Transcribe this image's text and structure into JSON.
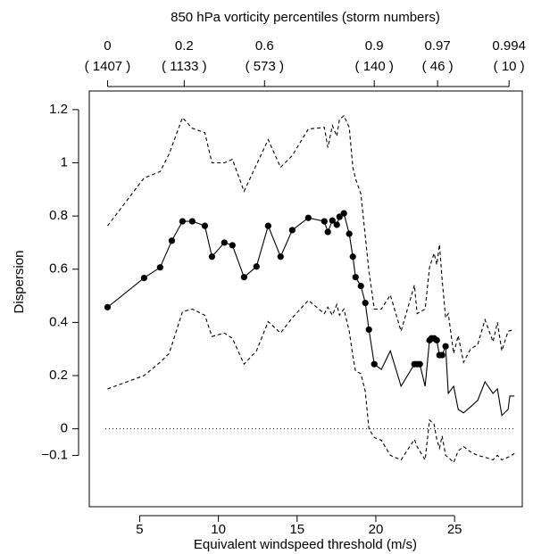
{
  "chart_data": {
    "type": "line",
    "title": "850 hPa vorticity percentiles (storm numbers)",
    "x_label": "Equivalent windspeed threshold (m/s)",
    "y_label": "Dispersion",
    "xlim": [
      1.8,
      29.3
    ],
    "ylim": [
      -0.293,
      1.27
    ],
    "xticks": [
      5,
      10,
      15,
      20,
      25
    ],
    "yticks": [
      {
        "value": -0.1,
        "label": "−0.1"
      },
      0,
      0.2,
      0.4,
      0.6,
      0.8,
      1,
      1.2
    ],
    "x2ticks": [
      {
        "value": 2.96,
        "label": "0",
        "sublabel": "( 1407 )"
      },
      {
        "value": 7.83,
        "label": "0.2",
        "sublabel": "( 1133 )"
      },
      {
        "value": 12.93,
        "label": "0.6",
        "sublabel": "( 573 )"
      },
      {
        "value": 19.9,
        "label": "0.9",
        "sublabel": "( 140 )"
      },
      {
        "value": 23.92,
        "label": "0.97",
        "sublabel": "( 46 )"
      },
      {
        "value": 28.46,
        "label": "0.994",
        "sublabel": "( 10 )"
      }
    ],
    "hline": 0,
    "series": [
      {
        "style": "solid",
        "color": "#000000",
        "x": [
          2.96,
          5.28,
          6.3,
          7.04,
          7.72,
          8.34,
          9.14,
          9.59,
          10.38,
          10.89,
          11.63,
          12.42,
          13.16,
          13.95,
          14.69,
          15.71,
          16.73,
          16.95,
          17.24,
          17.52,
          17.69,
          17.97,
          18.31,
          18.54,
          18.71,
          19.05,
          19.33,
          19.56,
          19.9,
          20.35,
          20.92,
          21.6,
          22.45,
          22.62,
          22.79,
          23.13,
          23.41,
          23.53,
          23.7,
          23.87,
          24.04,
          24.21,
          24.43,
          24.6,
          24.94,
          25.23,
          25.57,
          26.02,
          26.47,
          26.93,
          27.44,
          27.72,
          28.0,
          28.4,
          28.51,
          28.8
        ],
        "values": [
          0.457,
          0.567,
          0.607,
          0.707,
          0.78,
          0.78,
          0.763,
          0.647,
          0.7,
          0.69,
          0.57,
          0.61,
          0.763,
          0.647,
          0.747,
          0.793,
          0.78,
          0.74,
          0.783,
          0.767,
          0.797,
          0.81,
          0.733,
          0.647,
          0.57,
          0.537,
          0.473,
          0.373,
          0.243,
          0.223,
          0.293,
          0.16,
          0.243,
          0.243,
          0.243,
          0.16,
          0.333,
          0.34,
          0.34,
          0.333,
          0.277,
          0.277,
          0.31,
          0.133,
          0.16,
          0.073,
          0.06,
          0.083,
          0.107,
          0.177,
          0.133,
          0.15,
          0.05,
          0.073,
          0.123,
          0.123
        ]
      },
      {
        "style": "points",
        "color": "#000000",
        "x": [
          2.96,
          5.28,
          6.3,
          7.04,
          7.72,
          8.34,
          9.14,
          9.59,
          10.38,
          10.89,
          11.63,
          12.42,
          13.16,
          13.95,
          14.69,
          15.71,
          16.73,
          16.95,
          17.24,
          17.52,
          17.69,
          17.97,
          18.31,
          18.54,
          18.71,
          19.05,
          19.33,
          19.56,
          19.9,
          22.45,
          22.62,
          22.79,
          23.41,
          23.53,
          23.7,
          23.87,
          24.04,
          24.21,
          24.43
        ],
        "values": [
          0.457,
          0.567,
          0.607,
          0.707,
          0.78,
          0.78,
          0.763,
          0.647,
          0.7,
          0.69,
          0.57,
          0.61,
          0.763,
          0.647,
          0.747,
          0.793,
          0.78,
          0.74,
          0.783,
          0.767,
          0.797,
          0.81,
          0.733,
          0.647,
          0.57,
          0.537,
          0.473,
          0.373,
          0.243,
          0.243,
          0.243,
          0.243,
          0.333,
          0.34,
          0.34,
          0.333,
          0.277,
          0.277,
          0.31
        ]
      },
      {
        "style": "dashed",
        "color": "#000000",
        "x": [
          2.96,
          5.28,
          6.3,
          6.87,
          7.72,
          8.34,
          9.14,
          9.59,
          10.38,
          10.89,
          11.63,
          12.42,
          13.16,
          13.95,
          14.69,
          15.71,
          16.73,
          16.95,
          17.24,
          17.52,
          17.69,
          17.97,
          18.31,
          18.54,
          18.71,
          19.05,
          19.33,
          19.56,
          19.9,
          20.35,
          20.92,
          21.6,
          22.45,
          22.62,
          23.13,
          23.41,
          23.7,
          23.87,
          24.04,
          24.21,
          24.43,
          24.6,
          24.94,
          25.23,
          25.57,
          26.02,
          26.47,
          26.93,
          27.44,
          27.72,
          28.0,
          28.4,
          28.8
        ],
        "values": [
          0.763,
          0.943,
          0.967,
          1.033,
          1.17,
          1.13,
          1.113,
          1.0,
          1.0,
          1.013,
          0.893,
          0.993,
          1.087,
          0.983,
          1.027,
          1.127,
          1.133,
          1.057,
          1.14,
          1.1,
          1.163,
          1.177,
          1.133,
          0.983,
          0.94,
          0.883,
          0.723,
          0.593,
          0.45,
          0.45,
          0.503,
          0.367,
          0.54,
          0.433,
          0.45,
          0.607,
          0.66,
          0.617,
          0.693,
          0.56,
          0.417,
          0.433,
          0.283,
          0.35,
          0.25,
          0.3,
          0.317,
          0.41,
          0.327,
          0.4,
          0.293,
          0.367,
          0.373
        ]
      },
      {
        "style": "dashed",
        "color": "#000000",
        "x": [
          2.96,
          5.28,
          6.3,
          6.87,
          7.72,
          8.34,
          9.14,
          9.59,
          10.38,
          10.89,
          11.63,
          12.42,
          13.16,
          13.95,
          14.69,
          15.71,
          16.73,
          16.95,
          17.24,
          17.52,
          17.69,
          17.97,
          18.31,
          18.54,
          18.71,
          19.05,
          19.33,
          19.56,
          19.9,
          20.35,
          20.92,
          21.6,
          22.45,
          22.62,
          23.13,
          23.41,
          23.7,
          23.87,
          24.04,
          24.21,
          24.43,
          24.6,
          24.94,
          25.23,
          25.57,
          26.02,
          26.47,
          26.93,
          27.44,
          27.72,
          28.0,
          28.4,
          28.8
        ],
        "values": [
          0.15,
          0.2,
          0.25,
          0.283,
          0.44,
          0.45,
          0.427,
          0.347,
          0.36,
          0.34,
          0.243,
          0.293,
          0.403,
          0.36,
          0.417,
          0.483,
          0.433,
          0.457,
          0.427,
          0.467,
          0.427,
          0.45,
          0.367,
          0.273,
          0.217,
          0.207,
          0.14,
          0,
          -0.033,
          -0.043,
          -0.1,
          -0.117,
          -0.04,
          -0.067,
          -0.117,
          0.033,
          0.017,
          -0.04,
          -0.073,
          -0.027,
          -0.1,
          -0.107,
          -0.127,
          -0.083,
          -0.067,
          -0.087,
          -0.1,
          -0.107,
          -0.117,
          -0.1,
          -0.117,
          -0.107,
          -0.093
        ]
      }
    ]
  }
}
